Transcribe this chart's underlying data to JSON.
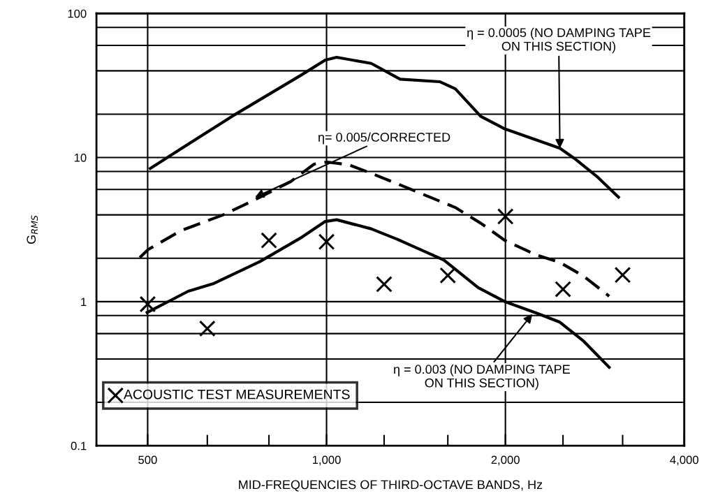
{
  "chart_data": {
    "type": "line",
    "xlabel": "MID-FREQUENCIES OF THIRD-OCTAVE BANDS, Hz",
    "ylabel": "G$_{RMS}$",
    "log": "xy",
    "xlim": [
      410,
      4000
    ],
    "ylim": [
      0.1,
      100
    ],
    "xticks": [
      500,
      {
        "value": 630,
        "label": null
      },
      {
        "value": 800,
        "label": null
      },
      {
        "value": 1000,
        "label": "1,000"
      },
      {
        "value": 1250,
        "label": null
      },
      {
        "value": 1600,
        "label": null
      },
      {
        "value": 2000,
        "label": "2,000"
      },
      {
        "value": 2500,
        "label": null
      },
      {
        "value": 3150,
        "label": null
      },
      {
        "value": 4000,
        "label": "4,000"
      }
    ],
    "yticks": [
      {
        "value": 0.1,
        "label": "0.1"
      },
      {
        "value": 0.2,
        "label": null
      },
      {
        "value": 0.4,
        "label": null
      },
      {
        "value": 0.6,
        "label": null
      },
      {
        "value": 0.8,
        "label": null
      },
      1,
      {
        "value": 2,
        "label": null
      },
      {
        "value": 4,
        "label": null
      },
      {
        "value": 6,
        "label": null
      },
      {
        "value": 8,
        "label": null
      },
      10,
      {
        "value": 20,
        "label": null
      },
      {
        "value": 40,
        "label": null
      },
      {
        "value": 60,
        "label": null
      },
      {
        "value": 80,
        "label": null
      },
      100
    ],
    "grid": true,
    "legend": "bottom left",
    "series": [
      {
        "type": "line",
        "line_style": "solid",
        "marker": "none",
        "color": "#000000",
        "x": [
          505,
          529,
          693,
          909,
          995,
          1040,
          1189,
          1330,
          1550,
          1647,
          1818,
          1996,
          2470,
          2610,
          2850,
          3100
        ],
        "values": [
          8.4,
          9.5,
          19.3,
          37.6,
          47.5,
          49.6,
          45,
          35,
          33.6,
          30,
          19.3,
          15.8,
          11.6,
          9.9,
          7.4,
          5.3
        ]
      },
      {
        "type": "line",
        "line_style": "dashed",
        "marker": "none",
        "color": "#000000",
        "x": [
          485,
          501,
          568,
          670,
          758,
          870,
          953,
          1002,
          1091,
          1196,
          1376,
          1647,
          1818,
          1996,
          2260,
          2470,
          2710,
          2990
        ],
        "values": [
          2.02,
          2.3,
          3.1,
          4.0,
          5.1,
          6.8,
          9.0,
          9.3,
          8.9,
          7.7,
          6.1,
          4.5,
          3.5,
          2.66,
          2.1,
          1.87,
          1.5,
          1.09
        ]
      },
      {
        "type": "line",
        "line_style": "solid",
        "marker": "none",
        "color": "#000000",
        "x": [
          499,
          585,
          644,
          773,
          909,
          995,
          1040,
          1189,
          1318,
          1576,
          1800,
          1996,
          2260,
          2470,
          2710,
          2990
        ],
        "values": [
          0.84,
          1.18,
          1.33,
          1.9,
          2.8,
          3.6,
          3.7,
          3.2,
          2.7,
          1.94,
          1.25,
          1.0,
          0.83,
          0.72,
          0.53,
          0.35
        ]
      },
      {
        "type": "scatter",
        "name": "ACOUSTIC TEST MEASUREMENTS",
        "marker": "cross",
        "color": "#000000",
        "x": [
          500,
          630,
          800,
          1000,
          1250,
          1600,
          2000,
          2500,
          3150
        ],
        "values": [
          0.96,
          0.65,
          2.66,
          2.6,
          1.32,
          1.52,
          3.9,
          1.22,
          1.53
        ]
      }
    ],
    "annotations": [
      {
        "text": "η = 0.0005 (NO DAMPING TAPE\nON THIS SECTION)",
        "x": 2470,
        "y": 11.6
      },
      {
        "text": "η= 0.005/CORRECTED",
        "x": 758,
        "y": 5.3
      },
      {
        "text": "η = 0.003 (NO DAMPING TAPE\nON THIS SECTION)",
        "x": 2220,
        "y": 0.82
      }
    ]
  }
}
